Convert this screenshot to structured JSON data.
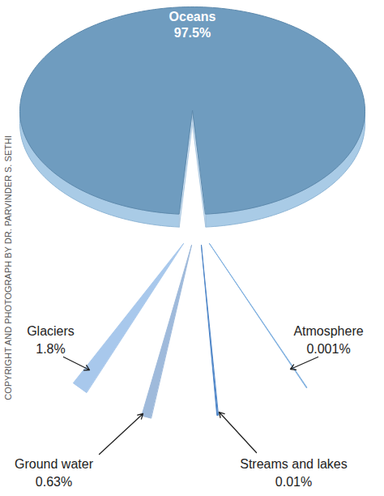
{
  "chart_data": {
    "type": "pie",
    "categories": [
      "Oceans",
      "Glaciers",
      "Ground water",
      "Streams and lakes",
      "Atmosphere"
    ],
    "values": [
      97.5,
      1.8,
      0.63,
      0.01,
      0.001
    ],
    "value_labels": [
      "97.5%",
      "1.8%",
      "0.63%",
      "0.01%",
      "0.001%"
    ],
    "colors": [
      "#6f9cbf",
      "#a8c8ec",
      "#9fbadb",
      "#4f86c8",
      "#7fb0e0"
    ],
    "data_labels": true,
    "annotations": [
      "COPYRIGHT AND PHOTOGRAPH BY DR. PARVINDER S. SETHI"
    ]
  }
}
